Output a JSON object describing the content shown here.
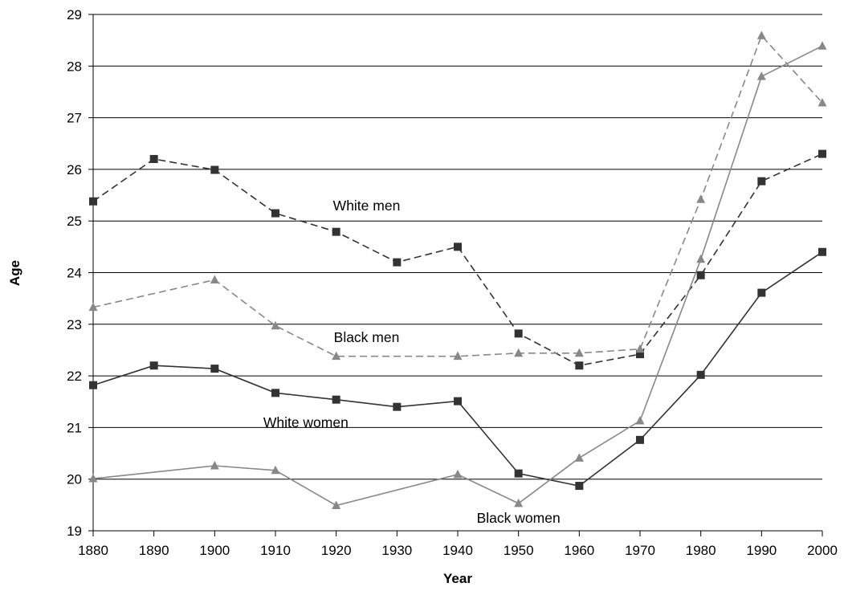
{
  "chart_data": {
    "type": "line",
    "title": "",
    "xlabel": "Year",
    "ylabel": "Age",
    "x": [
      1880,
      1890,
      1900,
      1910,
      1920,
      1930,
      1940,
      1950,
      1960,
      1970,
      1980,
      1990,
      2000
    ],
    "ylim": [
      19,
      29
    ],
    "yticks": [
      19,
      20,
      21,
      22,
      23,
      24,
      25,
      26,
      27,
      28,
      29
    ],
    "grid": "horizontal",
    "legend": "none",
    "series": [
      {
        "name": "White men",
        "style": "dashed",
        "marker": "square",
        "color": "#333333",
        "values": [
          25.38,
          26.2,
          25.99,
          25.15,
          24.79,
          24.2,
          24.5,
          22.82,
          22.2,
          22.42,
          23.95,
          25.77,
          26.3
        ]
      },
      {
        "name": "Black men",
        "style": "dashed",
        "marker": "triangle",
        "color": "#888888",
        "values": [
          23.33,
          null,
          23.86,
          22.97,
          22.38,
          null,
          22.38,
          22.44,
          22.44,
          22.52,
          25.42,
          28.59,
          27.29
        ]
      },
      {
        "name": "White women",
        "style": "solid",
        "marker": "square",
        "color": "#333333",
        "values": [
          21.82,
          22.2,
          22.14,
          21.67,
          21.54,
          21.4,
          21.51,
          20.11,
          19.87,
          20.76,
          22.02,
          23.61,
          24.4
        ]
      },
      {
        "name": "Black women",
        "style": "solid",
        "marker": "triangle",
        "color": "#888888",
        "values": [
          20.01,
          null,
          20.26,
          20.17,
          19.49,
          null,
          20.09,
          19.53,
          20.41,
          21.13,
          24.26,
          27.8,
          28.39
        ]
      }
    ],
    "annotations": [
      {
        "text": "White men",
        "x": 1925,
        "y": 25.3
      },
      {
        "text": "Black men",
        "x": 1925,
        "y": 22.75
      },
      {
        "text": "White women",
        "x": 1915,
        "y": 21.1
      },
      {
        "text": "Black women",
        "x": 1950,
        "y": 19.25
      }
    ]
  }
}
